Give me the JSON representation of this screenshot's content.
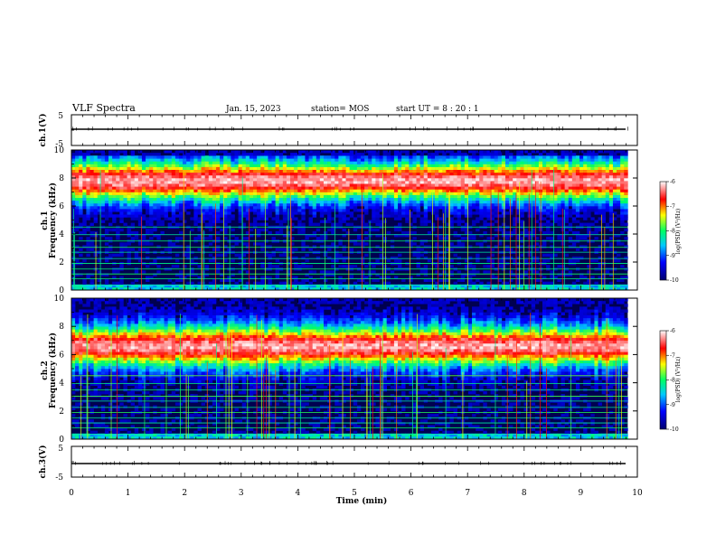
{
  "header": {
    "title": "VLF Spectra",
    "date": "Jan. 15, 2023",
    "station": "station= MOS",
    "start": "start  UT =   8 : 20 : 1"
  },
  "chart_data": {
    "type": "heatmap",
    "x_axis": {
      "label": "Time  (min)",
      "range": [
        0,
        10
      ],
      "ticks": [
        "0",
        "1",
        "2",
        "3",
        "4",
        "5",
        "6",
        "7",
        "8",
        "9",
        "10"
      ]
    },
    "panels": [
      {
        "name": "ch.1(V)",
        "kind": "waveform",
        "ylim": [
          -5,
          5
        ],
        "ticks": [
          "5",
          "-5"
        ]
      },
      {
        "name": "ch.1",
        "ylabel": "Frequency  (kHz)",
        "kind": "spectrogram",
        "ylim": [
          0,
          10
        ],
        "ticks": [
          "0",
          "2",
          "4",
          "6",
          "8",
          "10"
        ],
        "band_center_khz": 7.8,
        "colorbar": {
          "label": "log(PSD) (V²/Hz)",
          "range": [
            -10,
            -6
          ],
          "ticks": [
            "-6",
            "-7",
            "-8",
            "-9",
            "-10"
          ]
        }
      },
      {
        "name": "ch.2",
        "ylabel": "Frequency  (kHz)",
        "kind": "spectrogram",
        "ylim": [
          0,
          10
        ],
        "ticks": [
          "0",
          "2",
          "4",
          "6",
          "8",
          "10"
        ],
        "band_center_khz": 6.6,
        "colorbar": {
          "label": "log(PSD) (V²/Hz)",
          "range": [
            -10,
            -6
          ],
          "ticks": [
            "-6",
            "-7",
            "-8",
            "-9",
            "-10"
          ]
        }
      },
      {
        "name": "ch.3(V)",
        "kind": "waveform",
        "ylim": [
          -5,
          5
        ],
        "ticks": [
          "5",
          "-5"
        ]
      }
    ],
    "colors": {
      "colormap": [
        "#00006e",
        "#0000ff",
        "#00c8ff",
        "#00ff64",
        "#ffff00",
        "#ff0000",
        "#ffffff"
      ],
      "background": "#000050"
    },
    "data_end_min": 9.83
  }
}
